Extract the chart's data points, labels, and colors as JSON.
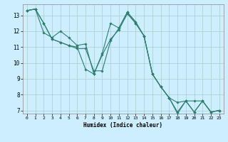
{
  "title": "",
  "xlabel": "Humidex (Indice chaleur)",
  "background_color": "#cceeff",
  "grid_color": "#aacccc",
  "line_color": "#2e7f6f",
  "xlim": [
    -0.5,
    23.5
  ],
  "ylim": [
    6.8,
    13.7
  ],
  "yticks": [
    7,
    8,
    9,
    10,
    11,
    12,
    13
  ],
  "xticks": [
    0,
    1,
    2,
    3,
    4,
    5,
    6,
    7,
    8,
    9,
    10,
    11,
    12,
    13,
    14,
    15,
    16,
    17,
    18,
    19,
    20,
    21,
    22,
    23
  ],
  "series": [
    [
      13.3,
      13.4,
      12.5,
      11.5,
      11.3,
      11.1,
      11.0,
      9.6,
      9.3,
      10.6,
      12.5,
      12.2,
      13.2,
      12.6,
      11.7,
      9.3,
      8.5,
      7.8,
      6.8,
      7.6,
      6.9,
      7.6,
      6.9,
      7.0
    ],
    [
      13.3,
      13.4,
      11.9,
      11.6,
      12.0,
      11.6,
      11.1,
      11.2,
      9.3,
      10.5,
      11.5,
      12.1,
      13.1,
      12.5,
      11.7,
      9.3,
      8.5,
      7.8,
      6.9,
      7.6,
      6.9,
      7.6,
      6.9,
      7.0
    ],
    [
      13.3,
      13.4,
      12.5,
      11.5,
      11.3,
      11.1,
      10.9,
      10.9,
      9.5,
      9.5,
      11.4,
      12.2,
      13.2,
      12.5,
      11.7,
      9.3,
      8.5,
      7.8,
      7.5,
      7.6,
      7.6,
      7.6,
      6.9,
      7.0
    ]
  ]
}
